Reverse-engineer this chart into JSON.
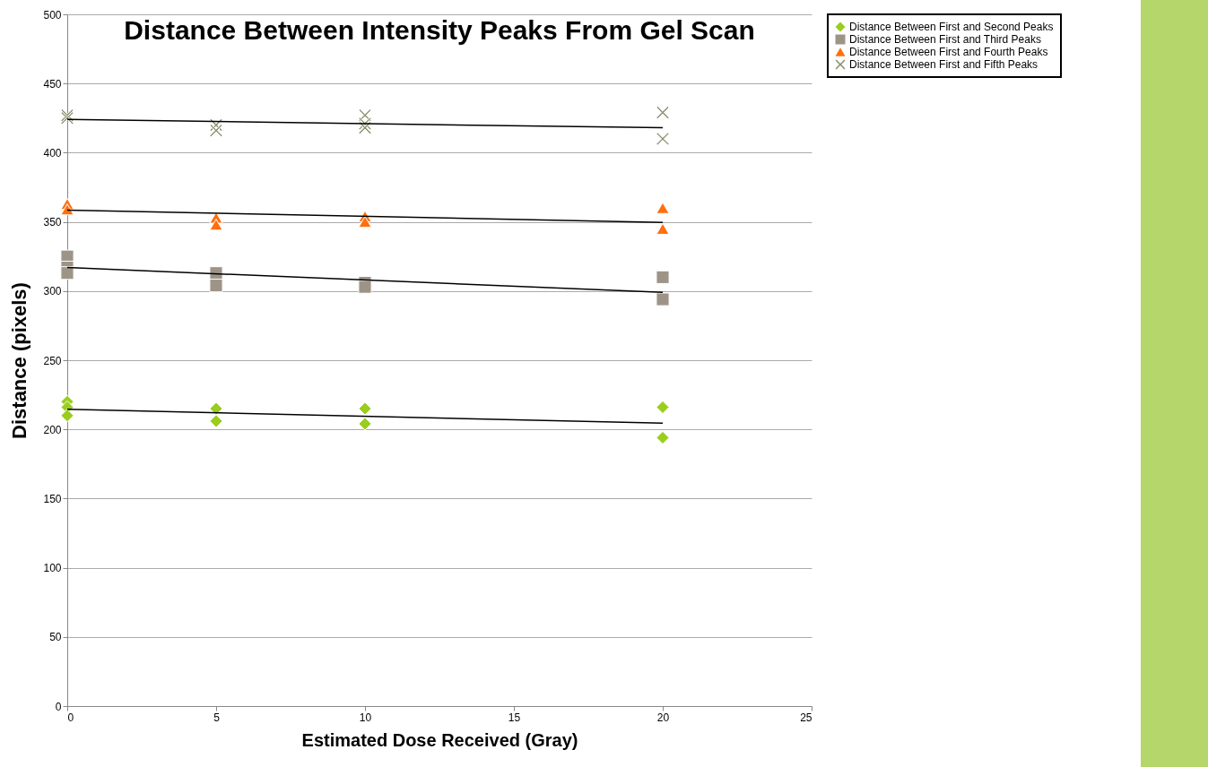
{
  "chart_data": {
    "type": "scatter",
    "title": "Distance Between Intensity Peaks From Gel Scan",
    "xlabel": "Estimated Dose Received (Gray)",
    "ylabel": "Distance (pixels)",
    "xlim": [
      0,
      25
    ],
    "xticks": [
      0,
      5,
      10,
      15,
      20,
      25
    ],
    "ylim": [
      0,
      500
    ],
    "yticks": [
      0,
      50,
      100,
      150,
      200,
      250,
      300,
      350,
      400,
      450,
      500
    ],
    "grid": "y",
    "legend": "right",
    "series": [
      {
        "name": "Distance Between First and Second Peaks",
        "color": "#9acd1e",
        "marker": "diamond",
        "x": [
          0,
          0,
          0,
          5,
          5,
          10,
          10,
          20,
          20
        ],
        "values": [
          220,
          216,
          210,
          215,
          206,
          215,
          204,
          216,
          194
        ]
      },
      {
        "name": "Distance Between First and Third Peaks",
        "color": "#9d9487",
        "marker": "square",
        "x": [
          0,
          0,
          0,
          5,
          5,
          10,
          10,
          20,
          20
        ],
        "values": [
          325,
          317,
          313,
          313,
          304,
          306,
          303,
          310,
          294
        ]
      },
      {
        "name": "Distance Between First and Fourth Peaks",
        "color": "#ff6f0f",
        "marker": "triangle",
        "x": [
          0,
          0,
          5,
          5,
          10,
          10,
          20,
          20
        ],
        "values": [
          363,
          359,
          353,
          348,
          354,
          350,
          360,
          345
        ]
      },
      {
        "name": "Distance Between First and Fifth Peaks",
        "color": "#8a8f6e",
        "marker": "cross",
        "x": [
          0,
          0,
          5,
          5,
          10,
          10,
          10,
          20,
          20
        ],
        "values": [
          427,
          425,
          420,
          416,
          427,
          421,
          418,
          429,
          410
        ]
      },
      {
        "type": "line",
        "color": "#000000",
        "x": [
          0,
          20
        ],
        "values": [
          214.5,
          204.5
        ]
      },
      {
        "type": "line",
        "color": "#000000",
        "x": [
          0,
          20
        ],
        "values": [
          317,
          299
        ]
      },
      {
        "type": "line",
        "color": "#000000",
        "x": [
          0,
          20
        ],
        "values": [
          358.5,
          349.5
        ]
      },
      {
        "type": "line",
        "color": "#000000",
        "x": [
          0,
          20
        ],
        "values": [
          424,
          418
        ]
      }
    ]
  }
}
